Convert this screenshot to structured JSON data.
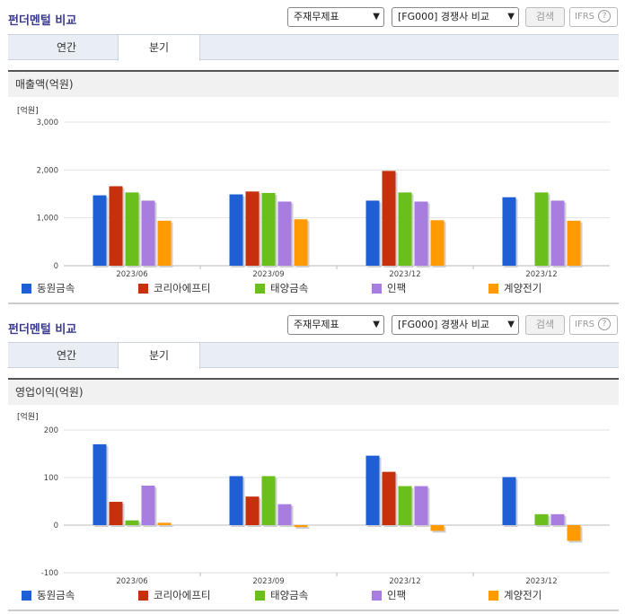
{
  "colors": {
    "title": "#3a3a8c",
    "series": [
      "#1f5fd6",
      "#c7300c",
      "#6bbf1c",
      "#a77ee0",
      "#ff9a00"
    ]
  },
  "panels": [
    {
      "title": "펀더멘털 비교",
      "select1": "주재무제표",
      "select2": "[FG000] 경쟁사 비교",
      "search_label": "검색",
      "ifrs_label": "IFRS",
      "help_icon": "?",
      "tabs": [
        "연간",
        "분기"
      ],
      "active_tab": 1,
      "section_label": "매출액(억원)"
    },
    {
      "title": "펀더멘털 비교",
      "select1": "주재무제표",
      "select2": "[FG000] 경쟁사 비교",
      "search_label": "검색",
      "ifrs_label": "IFRS",
      "help_icon": "?",
      "tabs": [
        "연간",
        "분기"
      ],
      "active_tab": 1,
      "section_label": "영업이익(억원)"
    }
  ],
  "chart_data": [
    {
      "type": "bar",
      "ylabel": "[억원]",
      "ylim": [
        0,
        3000
      ],
      "yticks": [
        0,
        1000,
        2000,
        3000
      ],
      "ytick_labels": [
        "0",
        "1,000",
        "2,000",
        "3,000"
      ],
      "categories": [
        "2023/06",
        "2023/09",
        "2023/12",
        "2023/12"
      ],
      "legend": "bottom",
      "series": [
        {
          "name": "동원금속",
          "values": [
            1470,
            1490,
            1360,
            1430
          ]
        },
        {
          "name": "코리아에프티",
          "values": [
            1660,
            1550,
            1980,
            null
          ]
        },
        {
          "name": "태양금속",
          "values": [
            1530,
            1520,
            1530,
            1530
          ]
        },
        {
          "name": "인팩",
          "values": [
            1360,
            1340,
            1340,
            1360
          ]
        },
        {
          "name": "계양전기",
          "values": [
            940,
            970,
            950,
            940
          ]
        }
      ]
    },
    {
      "type": "bar",
      "ylabel": "[억원]",
      "ylim": [
        -100,
        200
      ],
      "yticks": [
        -100,
        0,
        100,
        200
      ],
      "ytick_labels": [
        "-100",
        "0",
        "100",
        "200"
      ],
      "categories": [
        "2023/06",
        "2023/09",
        "2023/12",
        "2023/12"
      ],
      "legend": "bottom",
      "series": [
        {
          "name": "동원금속",
          "values": [
            170,
            103,
            146,
            101
          ]
        },
        {
          "name": "코리아에프티",
          "values": [
            49,
            60,
            112,
            null
          ]
        },
        {
          "name": "태양금속",
          "values": [
            10,
            103,
            82,
            23
          ]
        },
        {
          "name": "인팩",
          "values": [
            83,
            44,
            82,
            23
          ]
        },
        {
          "name": "계양전기",
          "values": [
            5,
            -4,
            -12,
            -33
          ]
        }
      ]
    }
  ]
}
